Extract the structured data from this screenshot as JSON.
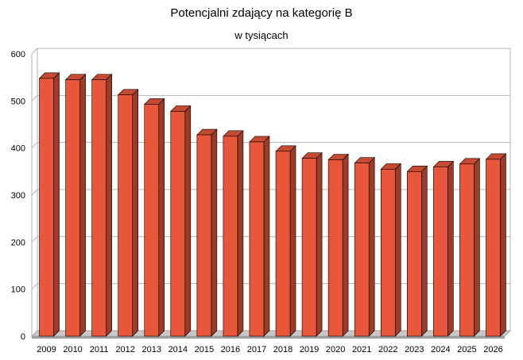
{
  "chart_data": {
    "type": "bar",
    "title": "Potencjalni zdający na kategorię B",
    "subtitle": "w tysiącach",
    "xlabel": "",
    "ylabel": "",
    "ylim": [
      0,
      600
    ],
    "yticks": [
      0,
      100,
      200,
      300,
      400,
      500,
      600
    ],
    "grid": true,
    "legend": "none",
    "bar_color": "#e8573a",
    "categories": [
      "2009",
      "2010",
      "2011",
      "2012",
      "2013",
      "2014",
      "2015",
      "2016",
      "2017",
      "2018",
      "2019",
      "2020",
      "2021",
      "2022",
      "2023",
      "2024",
      "2025",
      "2026"
    ],
    "values": [
      548,
      545,
      545,
      513,
      493,
      478,
      428,
      425,
      413,
      393,
      378,
      375,
      368,
      355,
      350,
      360,
      366,
      376
    ]
  }
}
